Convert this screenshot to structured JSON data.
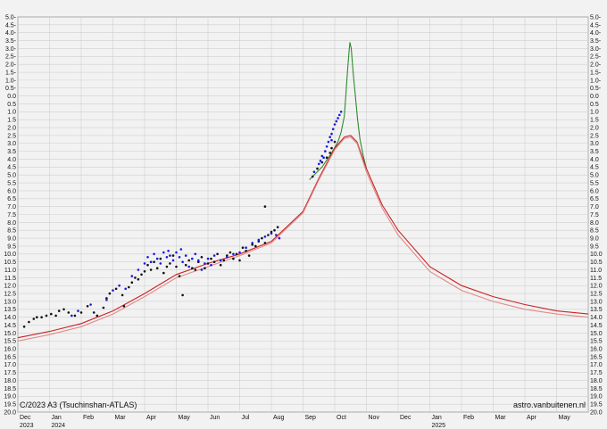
{
  "chart_data": {
    "type": "scatter",
    "title": "C/2023 A3 (Tsuchinshan-ATLAS)",
    "credit": "astro.vanbuitenen.nl",
    "y_axis": {
      "min": -5.0,
      "max": 20.0,
      "step": 0.5,
      "inverted": true,
      "both_sides": true
    },
    "x_axis": {
      "months": [
        "Dec",
        "Jan",
        "Feb",
        "Mar",
        "Apr",
        "May",
        "Jun",
        "Jul",
        "Aug",
        "Sep",
        "Oct",
        "Nov",
        "Dec",
        "Jan",
        "Feb",
        "Mar",
        "Apr",
        "May"
      ],
      "years": [
        {
          "label": "2023",
          "month_index": 0
        },
        {
          "label": "2024",
          "month_index": 1
        },
        {
          "label": "2025",
          "month_index": 13
        }
      ],
      "range_months": [
        0,
        18
      ],
      "grid": true
    },
    "series": [
      {
        "kind": "model-forward-scatter",
        "color": "#2e8b2e",
        "points": [
          [
            9.2,
            5.3
          ],
          [
            9.6,
            4.5
          ],
          [
            9.9,
            3.6
          ],
          [
            10.1,
            2.9
          ],
          [
            10.2,
            2.3
          ],
          [
            10.3,
            1.3
          ],
          [
            10.35,
            0.0
          ],
          [
            10.4,
            -1.5
          ],
          [
            10.45,
            -2.8
          ],
          [
            10.48,
            -3.4
          ],
          [
            10.52,
            -3.0
          ],
          [
            10.58,
            -1.5
          ],
          [
            10.65,
            0.0
          ],
          [
            10.72,
            1.5
          ],
          [
            10.8,
            2.8
          ],
          [
            10.9,
            3.8
          ],
          [
            11.0,
            4.6
          ]
        ]
      },
      {
        "kind": "model-upper",
        "color": "#cc2222",
        "points": [
          [
            0,
            15.3
          ],
          [
            1,
            14.9
          ],
          [
            2,
            14.4
          ],
          [
            3,
            13.6
          ],
          [
            4,
            12.5
          ],
          [
            5,
            11.3
          ],
          [
            6,
            10.6
          ],
          [
            7,
            10.0
          ],
          [
            8,
            9.2
          ],
          [
            9,
            7.3
          ],
          [
            9.5,
            5.2
          ],
          [
            10.0,
            3.3
          ],
          [
            10.3,
            2.6
          ],
          [
            10.5,
            2.5
          ],
          [
            10.7,
            2.9
          ],
          [
            11.0,
            4.6
          ],
          [
            11.5,
            6.9
          ],
          [
            12,
            8.5
          ],
          [
            13,
            10.8
          ],
          [
            14,
            12.0
          ],
          [
            15,
            12.7
          ],
          [
            16,
            13.2
          ],
          [
            17,
            13.6
          ],
          [
            18,
            13.8
          ]
        ]
      },
      {
        "kind": "model-lower",
        "color": "#e08a8a",
        "points": [
          [
            0,
            15.5
          ],
          [
            1,
            15.1
          ],
          [
            2,
            14.6
          ],
          [
            3,
            13.8
          ],
          [
            4,
            12.7
          ],
          [
            5,
            11.5
          ],
          [
            6,
            10.8
          ],
          [
            7,
            10.1
          ],
          [
            8,
            9.3
          ],
          [
            9,
            7.4
          ],
          [
            9.5,
            5.3
          ],
          [
            10.0,
            3.4
          ],
          [
            10.3,
            2.7
          ],
          [
            10.5,
            2.6
          ],
          [
            10.7,
            3.0
          ],
          [
            11.0,
            4.8
          ],
          [
            11.5,
            7.1
          ],
          [
            12,
            8.8
          ],
          [
            13,
            11.1
          ],
          [
            14,
            12.3
          ],
          [
            15,
            13.0
          ],
          [
            16,
            13.5
          ],
          [
            17,
            13.8
          ],
          [
            18,
            14.0
          ]
        ]
      },
      {
        "kind": "observations-visual",
        "color": "#111111",
        "points": [
          [
            0.2,
            14.6
          ],
          [
            0.35,
            14.3
          ],
          [
            0.5,
            14.1
          ],
          [
            0.6,
            14.0
          ],
          [
            0.75,
            14.0
          ],
          [
            0.9,
            13.9
          ],
          [
            1.05,
            13.8
          ],
          [
            1.2,
            13.9
          ],
          [
            1.3,
            13.6
          ],
          [
            1.45,
            13.5
          ],
          [
            1.6,
            13.7
          ],
          [
            1.8,
            13.9
          ],
          [
            2.0,
            13.7
          ],
          [
            2.2,
            13.3
          ],
          [
            2.4,
            13.7
          ],
          [
            2.5,
            13.9
          ],
          [
            2.7,
            13.4
          ],
          [
            2.8,
            12.8
          ],
          [
            2.9,
            12.5
          ],
          [
            3.1,
            12.2
          ],
          [
            3.3,
            12.6
          ],
          [
            3.35,
            13.3
          ],
          [
            3.5,
            12.1
          ],
          [
            3.6,
            11.8
          ],
          [
            3.7,
            11.5
          ],
          [
            3.8,
            11.6
          ],
          [
            3.9,
            11.3
          ],
          [
            4.0,
            11.1
          ],
          [
            4.1,
            10.7
          ],
          [
            4.2,
            11.0
          ],
          [
            4.3,
            10.5
          ],
          [
            4.4,
            10.9
          ],
          [
            4.5,
            10.3
          ],
          [
            4.6,
            11.2
          ],
          [
            4.7,
            10.8
          ],
          [
            4.8,
            10.6
          ],
          [
            4.9,
            10.1
          ],
          [
            5.0,
            10.8
          ],
          [
            5.1,
            11.4
          ],
          [
            5.2,
            12.6
          ],
          [
            5.3,
            10.7
          ],
          [
            5.4,
            10.4
          ],
          [
            5.5,
            10.9
          ],
          [
            5.6,
            11.0
          ],
          [
            5.7,
            10.5
          ],
          [
            5.8,
            10.2
          ],
          [
            5.9,
            10.9
          ],
          [
            6.0,
            10.6
          ],
          [
            6.1,
            10.3
          ],
          [
            6.2,
            10.5
          ],
          [
            6.3,
            10.0
          ],
          [
            6.4,
            10.7
          ],
          [
            6.5,
            10.4
          ],
          [
            6.6,
            10.1
          ],
          [
            6.7,
            9.9
          ],
          [
            6.8,
            10.3
          ],
          [
            6.9,
            10.0
          ],
          [
            7.0,
            10.4
          ],
          [
            7.1,
            9.6
          ],
          [
            7.2,
            9.8
          ],
          [
            7.3,
            10.1
          ],
          [
            7.4,
            9.4
          ],
          [
            7.5,
            9.5
          ],
          [
            7.6,
            9.2
          ],
          [
            7.7,
            9.0
          ],
          [
            7.8,
            9.3
          ],
          [
            7.9,
            8.8
          ],
          [
            7.8,
            7.0
          ],
          [
            8.0,
            8.6
          ],
          [
            8.1,
            8.5
          ],
          [
            8.2,
            8.3
          ],
          [
            9.3,
            5.1
          ],
          [
            9.45,
            4.6
          ],
          [
            9.6,
            4.2
          ],
          [
            9.75,
            3.9
          ],
          [
            9.85,
            3.6
          ],
          [
            9.9,
            3.3
          ],
          [
            10.0,
            2.9
          ]
        ]
      },
      {
        "kind": "observations-ccd",
        "color": "#1a1ae0",
        "points": [
          [
            1.7,
            13.9
          ],
          [
            1.9,
            13.6
          ],
          [
            2.3,
            13.2
          ],
          [
            2.8,
            12.9
          ],
          [
            3.0,
            12.3
          ],
          [
            3.2,
            12.0
          ],
          [
            3.4,
            12.2
          ],
          [
            3.6,
            11.4
          ],
          [
            3.8,
            11.0
          ],
          [
            4.0,
            10.6
          ],
          [
            4.1,
            10.2
          ],
          [
            4.2,
            10.5
          ],
          [
            4.3,
            10.0
          ],
          [
            4.4,
            10.3
          ],
          [
            4.5,
            10.6
          ],
          [
            4.6,
            9.9
          ],
          [
            4.7,
            10.2
          ],
          [
            4.75,
            9.8
          ],
          [
            4.8,
            10.1
          ],
          [
            4.9,
            10.4
          ],
          [
            5.0,
            9.9
          ],
          [
            5.1,
            10.2
          ],
          [
            5.15,
            9.7
          ],
          [
            5.2,
            10.5
          ],
          [
            5.3,
            10.1
          ],
          [
            5.4,
            10.8
          ],
          [
            5.5,
            10.3
          ],
          [
            5.6,
            10.0
          ],
          [
            5.7,
            10.4
          ],
          [
            5.8,
            11.0
          ],
          [
            5.9,
            10.6
          ],
          [
            6.0,
            10.3
          ],
          [
            6.1,
            10.7
          ],
          [
            6.2,
            10.1
          ],
          [
            6.4,
            10.4
          ],
          [
            6.6,
            10.2
          ],
          [
            6.8,
            10.0
          ],
          [
            7.0,
            9.9
          ],
          [
            7.2,
            9.6
          ],
          [
            7.4,
            9.3
          ],
          [
            7.6,
            9.1
          ],
          [
            7.8,
            8.9
          ],
          [
            8.0,
            8.7
          ],
          [
            8.15,
            8.8
          ],
          [
            8.25,
            9.0
          ],
          [
            9.35,
            4.8
          ],
          [
            9.5,
            4.3
          ],
          [
            9.6,
            3.8
          ],
          [
            9.7,
            3.5
          ],
          [
            9.75,
            3.2
          ],
          [
            9.8,
            2.9
          ],
          [
            9.85,
            2.6
          ],
          [
            9.9,
            2.4
          ],
          [
            9.95,
            2.1
          ],
          [
            10.0,
            1.8
          ],
          [
            10.05,
            1.6
          ],
          [
            10.1,
            1.4
          ],
          [
            10.15,
            1.2
          ],
          [
            10.2,
            1.0
          ],
          [
            9.65,
            3.9
          ],
          [
            9.55,
            4.1
          ],
          [
            9.9,
            2.8
          ]
        ]
      }
    ]
  }
}
